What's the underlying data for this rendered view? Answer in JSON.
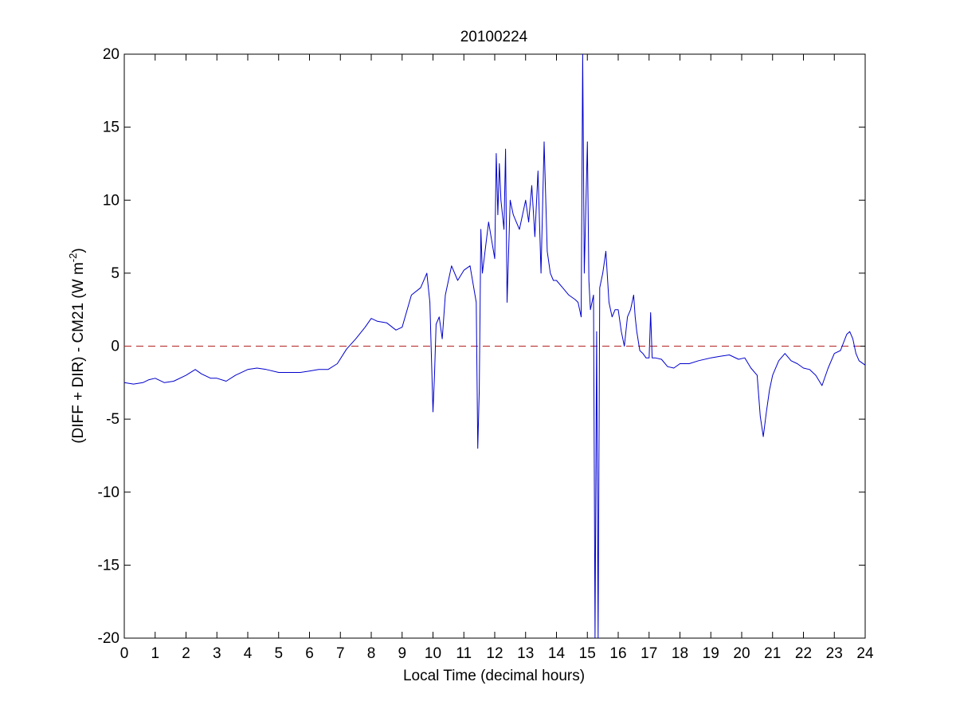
{
  "chart_data": {
    "type": "line",
    "title": "20100224",
    "xlabel": "Local Time (decimal hours)",
    "ylabel": {
      "prefix": "(DIFF + DIR) - CM21 (W m",
      "exponent": "-2",
      "suffix": ")"
    },
    "xlim": [
      0,
      24
    ],
    "ylim": [
      -20,
      20
    ],
    "xticks": [
      0,
      1,
      2,
      3,
      4,
      5,
      6,
      7,
      8,
      9,
      10,
      11,
      12,
      13,
      14,
      15,
      16,
      17,
      18,
      19,
      20,
      21,
      22,
      23,
      24
    ],
    "yticks": [
      -20,
      -15,
      -10,
      -5,
      0,
      5,
      10,
      15,
      20
    ],
    "grid": false,
    "legend": "none",
    "reference_line": {
      "y": 0,
      "style": "dashed",
      "color": "#b22222"
    },
    "series": [
      {
        "color": "#0000cc",
        "x": [
          0,
          0.3,
          0.6,
          0.8,
          1.0,
          1.3,
          1.6,
          2.0,
          2.3,
          2.5,
          2.8,
          3.0,
          3.3,
          3.6,
          4.0,
          4.3,
          4.6,
          5.0,
          5.3,
          5.7,
          6.0,
          6.3,
          6.6,
          6.9,
          7.2,
          7.5,
          7.8,
          8.0,
          8.2,
          8.5,
          8.8,
          9.0,
          9.3,
          9.6,
          9.8,
          9.9,
          10.0,
          10.05,
          10.1,
          10.2,
          10.3,
          10.4,
          10.5,
          10.6,
          10.8,
          11.0,
          11.2,
          11.4,
          11.45,
          11.5,
          11.55,
          11.6,
          11.8,
          12.0,
          12.05,
          12.1,
          12.15,
          12.2,
          12.3,
          12.35,
          12.4,
          12.5,
          12.6,
          12.7,
          12.8,
          12.9,
          13.0,
          13.1,
          13.2,
          13.3,
          13.4,
          13.5,
          13.6,
          13.7,
          13.8,
          13.9,
          14.0,
          14.2,
          14.4,
          14.6,
          14.7,
          14.8,
          14.85,
          14.9,
          15.0,
          15.05,
          15.1,
          15.2,
          15.25,
          15.3,
          15.35,
          15.4,
          15.5,
          15.6,
          15.7,
          15.8,
          15.9,
          16.0,
          16.1,
          16.2,
          16.3,
          16.4,
          16.5,
          16.55,
          16.6,
          16.7,
          16.8,
          16.9,
          17.0,
          17.05,
          17.1,
          17.2,
          17.4,
          17.6,
          17.8,
          18.0,
          18.3,
          18.6,
          19.0,
          19.3,
          19.6,
          19.9,
          20.1,
          20.3,
          20.5,
          20.6,
          20.7,
          20.8,
          20.9,
          21.0,
          21.2,
          21.4,
          21.6,
          21.8,
          22.0,
          22.2,
          22.4,
          22.6,
          22.8,
          23.0,
          23.2,
          23.4,
          23.5,
          23.6,
          23.7,
          23.8,
          24.0
        ],
        "y": [
          -2.5,
          -2.6,
          -2.5,
          -2.3,
          -2.2,
          -2.5,
          -2.4,
          -2.0,
          -1.6,
          -1.9,
          -2.2,
          -2.2,
          -2.4,
          -2.0,
          -1.6,
          -1.5,
          -1.6,
          -1.8,
          -1.8,
          -1.8,
          -1.7,
          -1.6,
          -1.6,
          -1.2,
          -0.2,
          0.5,
          1.3,
          1.9,
          1.7,
          1.6,
          1.1,
          1.3,
          3.5,
          4.0,
          5.0,
          3.0,
          -4.5,
          -2.0,
          1.5,
          2.0,
          0.5,
          3.5,
          4.5,
          5.5,
          4.5,
          5.2,
          5.5,
          3.0,
          -7.0,
          -3.0,
          8.0,
          5.0,
          8.5,
          6.0,
          13.2,
          9.0,
          12.5,
          10.0,
          8.0,
          13.5,
          3.0,
          10.0,
          9.0,
          8.5,
          8.0,
          9.0,
          10.0,
          8.5,
          11.0,
          7.5,
          12.0,
          5.0,
          14.0,
          6.5,
          5.0,
          4.5,
          4.5,
          4.0,
          3.5,
          3.2,
          3.0,
          2.0,
          20,
          5.0,
          14.0,
          4.5,
          2.5,
          3.5,
          -20,
          1.0,
          -20,
          4.0,
          5.0,
          6.5,
          3.0,
          2.0,
          2.5,
          2.5,
          1.0,
          0.0,
          2.0,
          2.5,
          3.5,
          2.0,
          1.0,
          -0.3,
          -0.5,
          -0.8,
          -0.8,
          2.3,
          -0.8,
          -0.8,
          -0.9,
          -1.4,
          -1.5,
          -1.2,
          -1.2,
          -1.0,
          -0.8,
          -0.7,
          -0.6,
          -0.9,
          -0.8,
          -1.5,
          -2.0,
          -4.8,
          -6.2,
          -4.5,
          -3.0,
          -2.0,
          -1.0,
          -0.5,
          -1.0,
          -1.2,
          -1.5,
          -1.6,
          -2.0,
          -2.7,
          -1.5,
          -0.5,
          -0.3,
          0.8,
          1.0,
          0.5,
          -0.5,
          -1.0,
          -1.3
        ]
      }
    ]
  }
}
